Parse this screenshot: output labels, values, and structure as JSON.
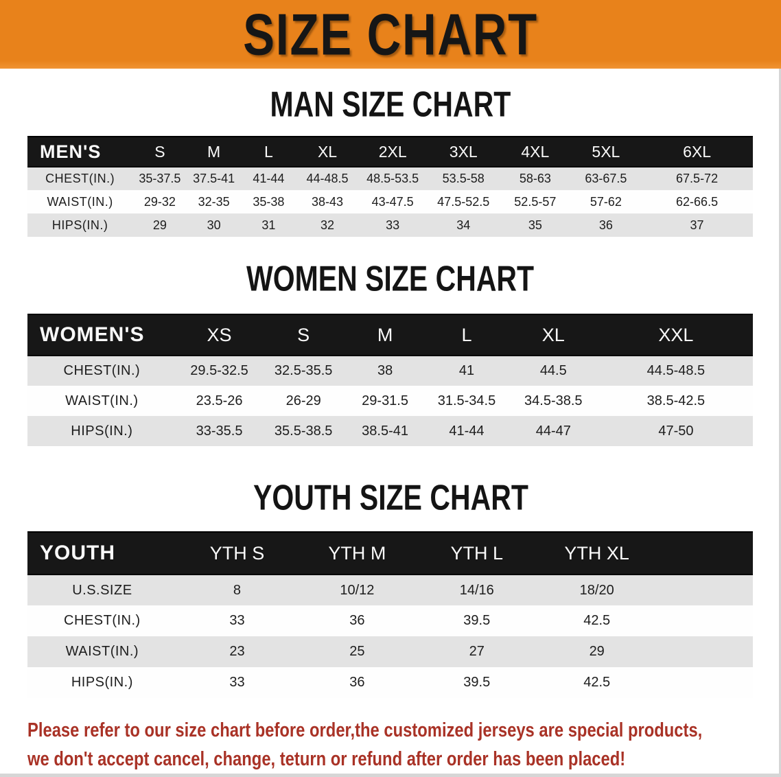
{
  "banner": {
    "title": "SIZE CHART"
  },
  "sections": [
    {
      "heading": "MAN SIZE CHART",
      "table": {
        "header": [
          "MEN'S",
          "S",
          "M",
          "L",
          "XL",
          "2XL",
          "3XL",
          "4XL",
          "5XL",
          "6XL"
        ],
        "rows": [
          {
            "label": "CHEST(IN.)",
            "values": [
              "35-37.5",
              "37.5-41",
              "41-44",
              "44-48.5",
              "48.5-53.5",
              "53.5-58",
              "58-63",
              "63-67.5",
              "67.5-72"
            ]
          },
          {
            "label": "WAIST(IN.)",
            "values": [
              "29-32",
              "32-35",
              "35-38",
              "38-43",
              "43-47.5",
              "47.5-52.5",
              "52.5-57",
              "57-62",
              "62-66.5"
            ]
          },
          {
            "label": "HIPS(IN.)",
            "values": [
              "29",
              "30",
              "31",
              "32",
              "33",
              "34",
              "35",
              "36",
              "37"
            ]
          }
        ]
      }
    },
    {
      "heading": "WOMEN SIZE CHART",
      "table": {
        "header": [
          "WOMEN'S",
          "XS",
          "S",
          "M",
          "L",
          "XL",
          "XXL"
        ],
        "rows": [
          {
            "label": "CHEST(IN.)",
            "values": [
              "29.5-32.5",
              "32.5-35.5",
              "38",
              "41",
              "44.5",
              "44.5-48.5"
            ]
          },
          {
            "label": "WAIST(IN.)",
            "values": [
              "23.5-26",
              "26-29",
              "29-31.5",
              "31.5-34.5",
              "34.5-38.5",
              "38.5-42.5"
            ]
          },
          {
            "label": "HIPS(IN.)",
            "values": [
              "33-35.5",
              "35.5-38.5",
              "38.5-41",
              "41-44",
              "44-47",
              "47-50"
            ]
          }
        ]
      }
    },
    {
      "heading": "YOUTH SIZE CHART",
      "table": {
        "header": [
          "YOUTH",
          "YTH S",
          "YTH M",
          "YTH L",
          "YTH XL"
        ],
        "rows": [
          {
            "label": "U.S.SIZE",
            "values": [
              "8",
              "10/12",
              "14/16",
              "18/20"
            ]
          },
          {
            "label": "CHEST(IN.)",
            "values": [
              "33",
              "36",
              "39.5",
              "42.5"
            ]
          },
          {
            "label": "WAIST(IN.)",
            "values": [
              "23",
              "25",
              "27",
              "29"
            ]
          },
          {
            "label": "HIPS(IN.)",
            "values": [
              "33",
              "36",
              "39.5",
              "42.5"
            ]
          }
        ]
      }
    }
  ],
  "disclaimer": {
    "lines": [
      "Please refer to our size chart before order,the customized jerseys are special products,",
      "we don't accept cancel, change, teturn or refund after order has been placed!"
    ]
  },
  "colors": {
    "banner_bg": "#E8821B",
    "header_bar": "#171717",
    "row_alt": "#E3E3E3",
    "disclaimer_red": "#A93226"
  }
}
